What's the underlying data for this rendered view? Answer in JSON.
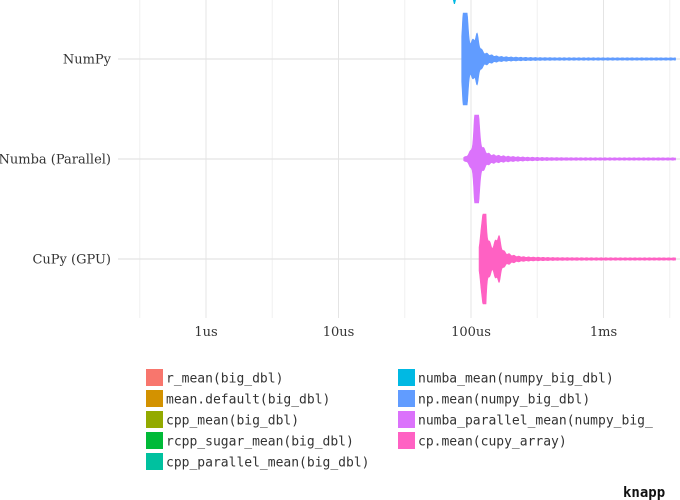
{
  "chart_data": {
    "type": "violin",
    "x_scale": "log10",
    "x_unit": "seconds",
    "x_ticks": [
      {
        "value": 1e-06,
        "label": "1us"
      },
      {
        "value": 1e-05,
        "label": "10us"
      },
      {
        "value": 0.0001,
        "label": "100us"
      },
      {
        "value": 0.001,
        "label": "1ms"
      }
    ],
    "xlim": [
      3e-07,
      0.0035
    ],
    "categories": [
      "NumPy",
      "Numba (Parallel)",
      "CuPy (GPU)"
    ],
    "series": [
      {
        "name": "np.mean(numpy_big_dbl)",
        "category": "NumPy",
        "color": "#619CFF",
        "peak": 9e-05,
        "secondary_peak": 0.00011,
        "min": 8.5e-05,
        "max": 0.0035
      },
      {
        "name": "numba_parallel_mean(numpy_big_dbl)",
        "category": "Numba (Parallel)",
        "color": "#DB72FB",
        "peak": 0.00011,
        "min": 8.8e-05,
        "max": 0.0035
      },
      {
        "name": "cp.mean(cupy_array)",
        "category": "CuPy (GPU)",
        "color": "#FF61C3",
        "peak": 0.000125,
        "secondary_peak": 0.00016,
        "min": 0.000115,
        "max": 0.0035
      }
    ],
    "partial_top_series": {
      "color": "#00B9E3",
      "value": 7.5e-05
    },
    "legend": {
      "placement": "bottom",
      "columns": [
        [
          {
            "label": "r_mean(big_dbl)",
            "color": "#F8766D"
          },
          {
            "label": "mean.default(big_dbl)",
            "color": "#D39200"
          },
          {
            "label": "cpp_mean(big_dbl)",
            "color": "#93AA00"
          },
          {
            "label": "rcpp_sugar_mean(big_dbl)",
            "color": "#00BA38"
          },
          {
            "label": "cpp_parallel_mean(big_dbl)",
            "color": "#00C19F"
          }
        ],
        [
          {
            "label": "numba_mean(numpy_big_dbl)",
            "color": "#00B9E3"
          },
          {
            "label": "np.mean(numpy_big_dbl)",
            "color": "#619CFF"
          },
          {
            "label": "numba_parallel_mean(numpy_big_",
            "color": "#DB72FB"
          },
          {
            "label": "cp.mean(cupy_array)",
            "color": "#FF61C3"
          }
        ]
      ]
    },
    "grid": true,
    "caption": "knapp"
  }
}
